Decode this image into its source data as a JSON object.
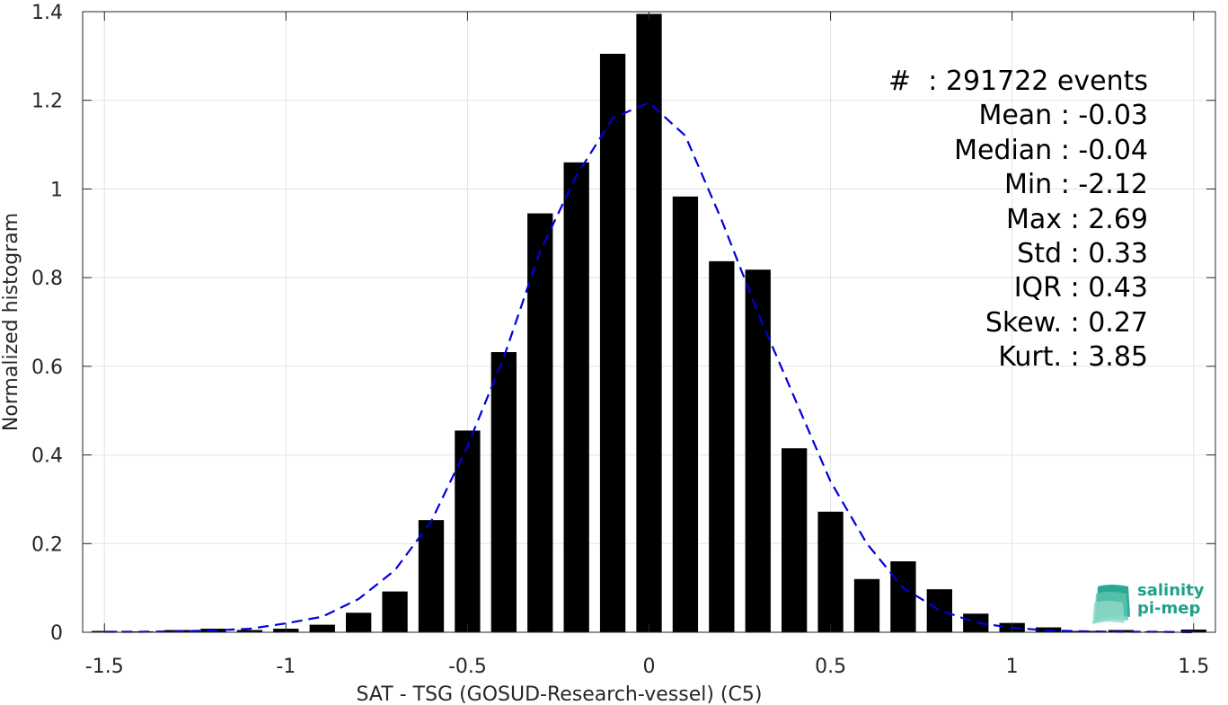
{
  "chart_data": {
    "type": "bar",
    "xlabel": "SAT - TSG (GOSUD-Research-vessel) (C5)",
    "ylabel": "Normalized histogram",
    "xlim": [
      -1.56,
      1.56
    ],
    "ylim": [
      0,
      1.4
    ],
    "xticks": [
      -1.5,
      -1,
      -0.5,
      0,
      0.5,
      1,
      1.5
    ],
    "xtick_labels": [
      "-1.5",
      "-1",
      "-0.5",
      "0",
      "0.5",
      "1",
      "1.5"
    ],
    "yticks": [
      0,
      0.2,
      0.4,
      0.6,
      0.8,
      1,
      1.2,
      1.4
    ],
    "ytick_labels": [
      "0",
      "0.2",
      "0.4",
      "0.6",
      "0.8",
      "1",
      "1.2",
      "1.4"
    ],
    "grid": true,
    "bar_color": "#000000",
    "bars": {
      "centers": [
        -1.5,
        -1.4,
        -1.3,
        -1.2,
        -1.1,
        -1.0,
        -0.9,
        -0.8,
        -0.7,
        -0.6,
        -0.5,
        -0.4,
        -0.3,
        -0.2,
        -0.1,
        0.0,
        0.1,
        0.2,
        0.3,
        0.4,
        0.5,
        0.6,
        0.7,
        0.8,
        0.9,
        1.0,
        1.1,
        1.2,
        1.3,
        1.4,
        1.5
      ],
      "values": [
        0.003,
        0.002,
        0.005,
        0.008,
        0.005,
        0.008,
        0.017,
        0.044,
        0.092,
        0.253,
        0.455,
        0.632,
        0.945,
        1.06,
        1.305,
        1.395,
        0.983,
        0.837,
        0.818,
        0.415,
        0.272,
        0.12,
        0.16,
        0.097,
        0.042,
        0.021,
        0.011,
        0.003,
        0.005,
        0.002,
        0.006
      ]
    },
    "fit_curve": {
      "style": "dashed",
      "color": "#0000dd",
      "x": [
        -1.5,
        -1.4,
        -1.3,
        -1.2,
        -1.1,
        -1.0,
        -0.9,
        -0.8,
        -0.7,
        -0.6,
        -0.5,
        -0.4,
        -0.3,
        -0.2,
        -0.1,
        0.0,
        0.1,
        0.2,
        0.3,
        0.4,
        0.5,
        0.6,
        0.7,
        0.8,
        0.9,
        1.0,
        1.1,
        1.2,
        1.3,
        1.4,
        1.5
      ],
      "y": [
        0.001,
        0.001,
        0.002,
        0.004,
        0.008,
        0.02,
        0.035,
        0.075,
        0.14,
        0.25,
        0.42,
        0.62,
        0.86,
        1.03,
        1.16,
        1.195,
        1.12,
        0.93,
        0.72,
        0.53,
        0.34,
        0.2,
        0.1,
        0.05,
        0.022,
        0.01,
        0.004,
        0.002,
        0.001,
        0.001,
        0.0
      ]
    }
  },
  "stats": [
    "#  : 291722 events",
    "Mean : -0.03",
    "Median : -0.04",
    "Min : -2.12",
    "Max : 2.69",
    "Std : 0.33",
    "IQR : 0.43",
    "Skew. : 0.27",
    "Kurt. : 3.85"
  ],
  "logo": {
    "line1": "salinity",
    "line2": "pi-mep",
    "color": "#20a08a"
  }
}
